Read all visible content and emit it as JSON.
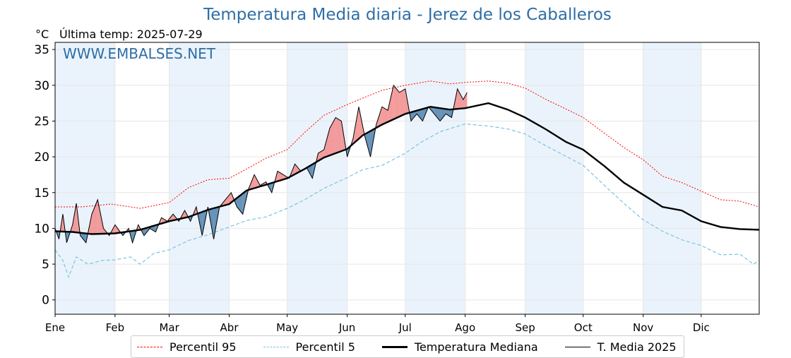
{
  "header": {
    "title": "Temperatura Media diaria - Jerez de los Caballeros",
    "unit": "°C",
    "last_temp": "Última temp: 2025-07-29",
    "watermark": "WWW.EMBALSES.NET"
  },
  "legend": {
    "p95": "Percentil 95",
    "p5": "Percentil 5",
    "median": "Temperatura Mediana",
    "t2025": "T. Media 2025"
  },
  "colors": {
    "p95": "#ff0000",
    "p5": "#7ec3e0",
    "median": "#000000",
    "t2025": "#000000",
    "above": "#f28b8b",
    "below": "#4f81ad",
    "month_band": "#eaf3fb"
  },
  "chart_data": {
    "type": "line",
    "xlabel": "",
    "ylabel": "°C",
    "xlim": [
      1,
      365
    ],
    "ylim": [
      -2,
      36
    ],
    "y_ticks": [
      0,
      5,
      10,
      15,
      20,
      25,
      30,
      35
    ],
    "x_tick_labels": [
      "Ene",
      "Feb",
      "Mar",
      "Abr",
      "May",
      "Jun",
      "Jul",
      "Ago",
      "Sep",
      "Oct",
      "Nov",
      "Dic"
    ],
    "x_tick_days": [
      1,
      32,
      60,
      91,
      121,
      152,
      182,
      213,
      244,
      274,
      305,
      335
    ],
    "grid": true,
    "shaded_months": [
      1,
      3,
      5,
      7,
      9,
      11
    ],
    "legend_position": "bottom-center",
    "series": [
      {
        "name": "Percentil 95",
        "style": "dotted-red",
        "points": [
          [
            1,
            13
          ],
          [
            15,
            13
          ],
          [
            30,
            13.4
          ],
          [
            45,
            12.8
          ],
          [
            60,
            13.6
          ],
          [
            70,
            15.7
          ],
          [
            80,
            16.8
          ],
          [
            91,
            17
          ],
          [
            100,
            18.3
          ],
          [
            110,
            19.8
          ],
          [
            121,
            21
          ],
          [
            130,
            23.4
          ],
          [
            140,
            25.8
          ],
          [
            152,
            27.3
          ],
          [
            160,
            28.2
          ],
          [
            170,
            29.3
          ],
          [
            182,
            30
          ],
          [
            195,
            30.6
          ],
          [
            205,
            30.2
          ],
          [
            213,
            30.4
          ],
          [
            225,
            30.6
          ],
          [
            235,
            30.3
          ],
          [
            244,
            29.6
          ],
          [
            255,
            28
          ],
          [
            265,
            26.7
          ],
          [
            274,
            25.5
          ],
          [
            285,
            23.3
          ],
          [
            295,
            21.3
          ],
          [
            305,
            19.6
          ],
          [
            315,
            17.3
          ],
          [
            325,
            16.4
          ],
          [
            335,
            15.2
          ],
          [
            345,
            14
          ],
          [
            355,
            13.8
          ],
          [
            365,
            13
          ]
        ]
      },
      {
        "name": "Percentil 5",
        "style": "dashed-lightblue",
        "points": [
          [
            1,
            7
          ],
          [
            5,
            5.5
          ],
          [
            8,
            3.2
          ],
          [
            12,
            6
          ],
          [
            18,
            5
          ],
          [
            25,
            5.5
          ],
          [
            32,
            5.6
          ],
          [
            40,
            6
          ],
          [
            45,
            5
          ],
          [
            52,
            6.5
          ],
          [
            60,
            7
          ],
          [
            70,
            8.3
          ],
          [
            80,
            9.1
          ],
          [
            91,
            10.2
          ],
          [
            100,
            11.1
          ],
          [
            110,
            11.6
          ],
          [
            121,
            12.8
          ],
          [
            130,
            14
          ],
          [
            140,
            15.6
          ],
          [
            152,
            17.1
          ],
          [
            160,
            18.2
          ],
          [
            170,
            18.8
          ],
          [
            182,
            20.5
          ],
          [
            190,
            22
          ],
          [
            200,
            23.5
          ],
          [
            213,
            24.6
          ],
          [
            225,
            24.3
          ],
          [
            235,
            23.9
          ],
          [
            244,
            23.2
          ],
          [
            255,
            21.5
          ],
          [
            265,
            20.1
          ],
          [
            274,
            18.8
          ],
          [
            285,
            16
          ],
          [
            295,
            13.5
          ],
          [
            305,
            11.2
          ],
          [
            315,
            9.6
          ],
          [
            325,
            8.4
          ],
          [
            335,
            7.6
          ],
          [
            345,
            6.3
          ],
          [
            355,
            6.4
          ],
          [
            362,
            5
          ],
          [
            365,
            5.5
          ]
        ]
      },
      {
        "name": "Temperatura Mediana",
        "style": "thick-black",
        "points": [
          [
            1,
            9.6
          ],
          [
            10,
            9.5
          ],
          [
            20,
            9.2
          ],
          [
            32,
            9.3
          ],
          [
            45,
            9.8
          ],
          [
            60,
            11
          ],
          [
            70,
            11.6
          ],
          [
            80,
            12.6
          ],
          [
            91,
            13.4
          ],
          [
            100,
            15.3
          ],
          [
            110,
            16.1
          ],
          [
            121,
            17
          ],
          [
            130,
            18.3
          ],
          [
            140,
            19.9
          ],
          [
            152,
            21.1
          ],
          [
            160,
            23
          ],
          [
            170,
            24.5
          ],
          [
            182,
            26
          ],
          [
            195,
            27
          ],
          [
            205,
            26.6
          ],
          [
            213,
            26.8
          ],
          [
            225,
            27.5
          ],
          [
            235,
            26.6
          ],
          [
            244,
            25.5
          ],
          [
            255,
            23.8
          ],
          [
            265,
            22.1
          ],
          [
            274,
            21
          ],
          [
            285,
            18.7
          ],
          [
            295,
            16.4
          ],
          [
            305,
            14.7
          ],
          [
            315,
            13
          ],
          [
            325,
            12.5
          ],
          [
            335,
            11
          ],
          [
            345,
            10.2
          ],
          [
            355,
            9.9
          ],
          [
            365,
            9.8
          ]
        ]
      },
      {
        "name": "T. Media 2025",
        "style": "thin-black",
        "points": [
          [
            1,
            10
          ],
          [
            3,
            8.5
          ],
          [
            5,
            12
          ],
          [
            7,
            8
          ],
          [
            10,
            10.5
          ],
          [
            12,
            13.5
          ],
          [
            14,
            9
          ],
          [
            17,
            8
          ],
          [
            20,
            12
          ],
          [
            23,
            14
          ],
          [
            26,
            10
          ],
          [
            29,
            9
          ],
          [
            32,
            10.5
          ],
          [
            36,
            9
          ],
          [
            39,
            10
          ],
          [
            41,
            8
          ],
          [
            44,
            10.5
          ],
          [
            47,
            9
          ],
          [
            50,
            10
          ],
          [
            53,
            9.5
          ],
          [
            56,
            11.5
          ],
          [
            59,
            11
          ],
          [
            62,
            12
          ],
          [
            65,
            11
          ],
          [
            68,
            12.5
          ],
          [
            71,
            11
          ],
          [
            74,
            13
          ],
          [
            77,
            9
          ],
          [
            80,
            13
          ],
          [
            83,
            8.5
          ],
          [
            86,
            13
          ],
          [
            89,
            14
          ],
          [
            92,
            15
          ],
          [
            95,
            13
          ],
          [
            98,
            12
          ],
          [
            101,
            15.5
          ],
          [
            104,
            17.5
          ],
          [
            107,
            16
          ],
          [
            110,
            16.5
          ],
          [
            113,
            15
          ],
          [
            116,
            18
          ],
          [
            119,
            17.5
          ],
          [
            122,
            17
          ],
          [
            125,
            19
          ],
          [
            128,
            18
          ],
          [
            131,
            18.5
          ],
          [
            134,
            17
          ],
          [
            137,
            20.5
          ],
          [
            140,
            21
          ],
          [
            143,
            24
          ],
          [
            146,
            25.5
          ],
          [
            149,
            25
          ],
          [
            152,
            20
          ],
          [
            155,
            22.5
          ],
          [
            158,
            27
          ],
          [
            161,
            23
          ],
          [
            164,
            20
          ],
          [
            167,
            24.5
          ],
          [
            170,
            27
          ],
          [
            173,
            26.5
          ],
          [
            176,
            30
          ],
          [
            179,
            29
          ],
          [
            182,
            29.5
          ],
          [
            185,
            25
          ],
          [
            188,
            26
          ],
          [
            191,
            25
          ],
          [
            194,
            27
          ],
          [
            197,
            26
          ],
          [
            200,
            25
          ],
          [
            203,
            26
          ],
          [
            206,
            25.5
          ],
          [
            209,
            29.5
          ],
          [
            212,
            28
          ],
          [
            214,
            29
          ]
        ]
      }
    ]
  }
}
